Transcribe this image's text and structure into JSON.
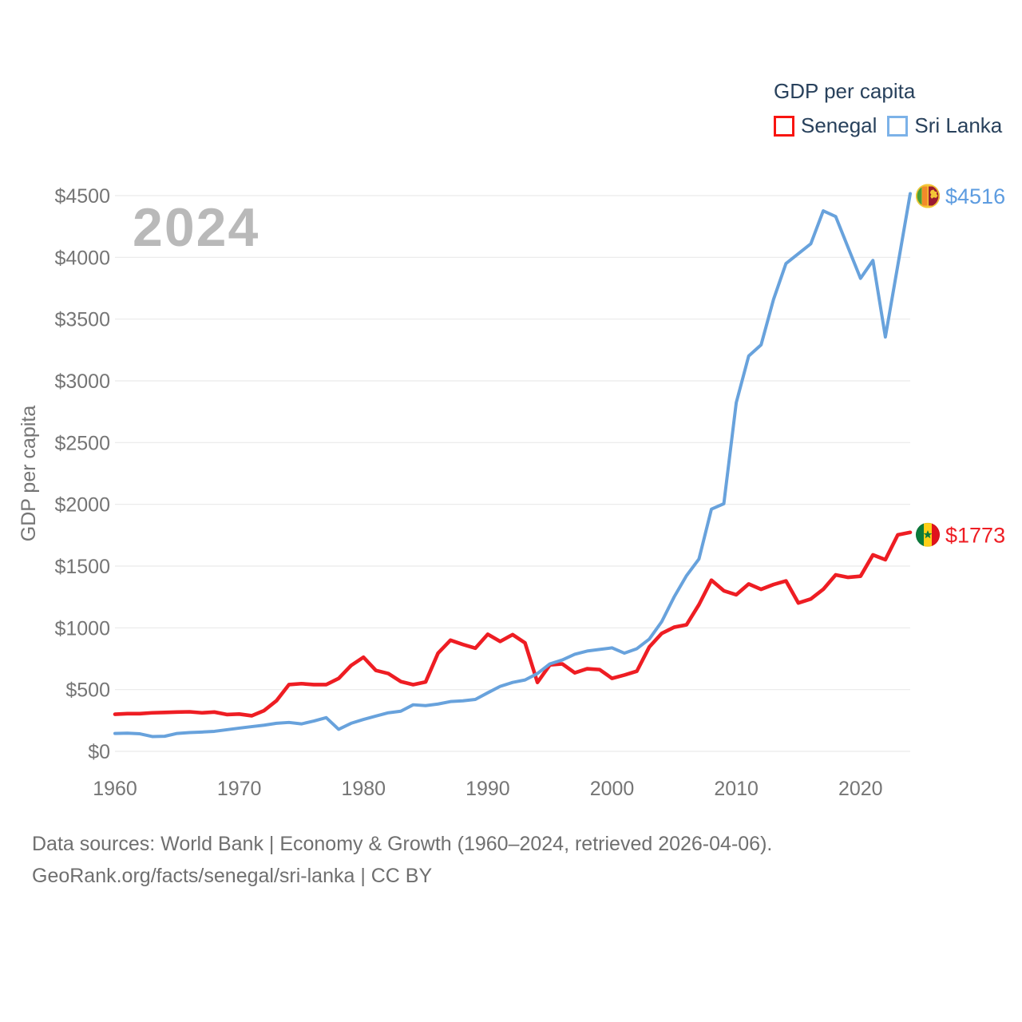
{
  "legend": {
    "title": "GDP per capita",
    "items": [
      {
        "name": "Senegal",
        "swatch_color": "#f81511"
      },
      {
        "name": "Sri Lanka",
        "swatch_color": "#7cb2e8"
      }
    ]
  },
  "watermark": "2024",
  "y_axis": {
    "title": "GDP per capita",
    "ticks": [
      {
        "label": "$0",
        "value": 0
      },
      {
        "label": "$500",
        "value": 500
      },
      {
        "label": "$1000",
        "value": 1000
      },
      {
        "label": "$1500",
        "value": 1500
      },
      {
        "label": "$2000",
        "value": 2000
      },
      {
        "label": "$2500",
        "value": 2500
      },
      {
        "label": "$3000",
        "value": 3000
      },
      {
        "label": "$3500",
        "value": 3500
      },
      {
        "label": "$4000",
        "value": 4000
      },
      {
        "label": "$4500",
        "value": 4500
      }
    ]
  },
  "x_axis": {
    "ticks": [
      {
        "label": "1960",
        "value": 1960
      },
      {
        "label": "1970",
        "value": 1970
      },
      {
        "label": "1980",
        "value": 1980
      },
      {
        "label": "1990",
        "value": 1990
      },
      {
        "label": "2000",
        "value": 2000
      },
      {
        "label": "2010",
        "value": 2010
      },
      {
        "label": "2020",
        "value": 2020
      }
    ]
  },
  "end_labels": [
    {
      "series": "Sri Lanka",
      "text": "$4516",
      "color": "#5d9ce0",
      "flag": "sri-lanka"
    },
    {
      "series": "Senegal",
      "text": "$1773",
      "color": "#ee1d23",
      "flag": "senegal"
    }
  ],
  "footer": {
    "line1": "Data sources: World Bank | Economy & Growth (1960–2024, retrieved 2026-04-06).",
    "line2": "GeoRank.org/facts/senegal/sri-lanka | CC BY"
  },
  "chart_data": {
    "type": "line",
    "title": "GDP per capita",
    "ylabel": "GDP per capita",
    "watermark_year": "2024",
    "ylim": [
      0,
      4500
    ],
    "x_range": [
      1960,
      2024
    ],
    "grid": "horizontal",
    "legend_position": "top-right",
    "x": [
      1960,
      1961,
      1962,
      1963,
      1964,
      1965,
      1966,
      1967,
      1968,
      1969,
      1970,
      1971,
      1972,
      1973,
      1974,
      1975,
      1976,
      1977,
      1978,
      1979,
      1980,
      1981,
      1982,
      1983,
      1984,
      1985,
      1986,
      1987,
      1988,
      1989,
      1990,
      1991,
      1992,
      1993,
      1994,
      1995,
      1996,
      1997,
      1998,
      1999,
      2000,
      2001,
      2002,
      2003,
      2004,
      2005,
      2006,
      2007,
      2008,
      2009,
      2010,
      2011,
      2012,
      2013,
      2014,
      2015,
      2016,
      2017,
      2018,
      2019,
      2020,
      2021,
      2022,
      2023,
      2024
    ],
    "series": [
      {
        "name": "Senegal",
        "color": "#ee1d23",
        "stroke_width": 4.6,
        "end_value": 1773,
        "end_label": "$1773",
        "values": [
          300,
          305,
          305,
          312,
          315,
          318,
          320,
          312,
          318,
          298,
          302,
          288,
          330,
          410,
          540,
          548,
          540,
          540,
          590,
          695,
          762,
          655,
          630,
          565,
          540,
          562,
          795,
          900,
          865,
          835,
          948,
          890,
          945,
          878,
          558,
          700,
          708,
          636,
          669,
          662,
          591,
          618,
          649,
          845,
          955,
          1005,
          1025,
          1188,
          1386,
          1300,
          1268,
          1355,
          1312,
          1351,
          1380,
          1201,
          1234,
          1312,
          1429,
          1409,
          1418,
          1591,
          1552,
          1753,
          1773
        ]
      },
      {
        "name": "Sri Lanka",
        "color": "#68a2dc",
        "stroke_width": 4.0,
        "end_value": 4516,
        "end_label": "$4516",
        "values": [
          145,
          147,
          142,
          120,
          122,
          145,
          152,
          156,
          162,
          175,
          188,
          200,
          212,
          227,
          234,
          222,
          245,
          273,
          178,
          227,
          258,
          286,
          312,
          325,
          377,
          370,
          383,
          403,
          409,
          420,
          474,
          526,
          558,
          578,
          630,
          708,
          740,
          786,
          812,
          825,
          838,
          795,
          831,
          909,
          1050,
          1250,
          1423,
          1558,
          1961,
          2005,
          2824,
          3201,
          3292,
          3660,
          3950,
          4030,
          4110,
          4377,
          4331,
          4080,
          3830,
          3975,
          3355,
          3935,
          4516
        ]
      }
    ]
  }
}
